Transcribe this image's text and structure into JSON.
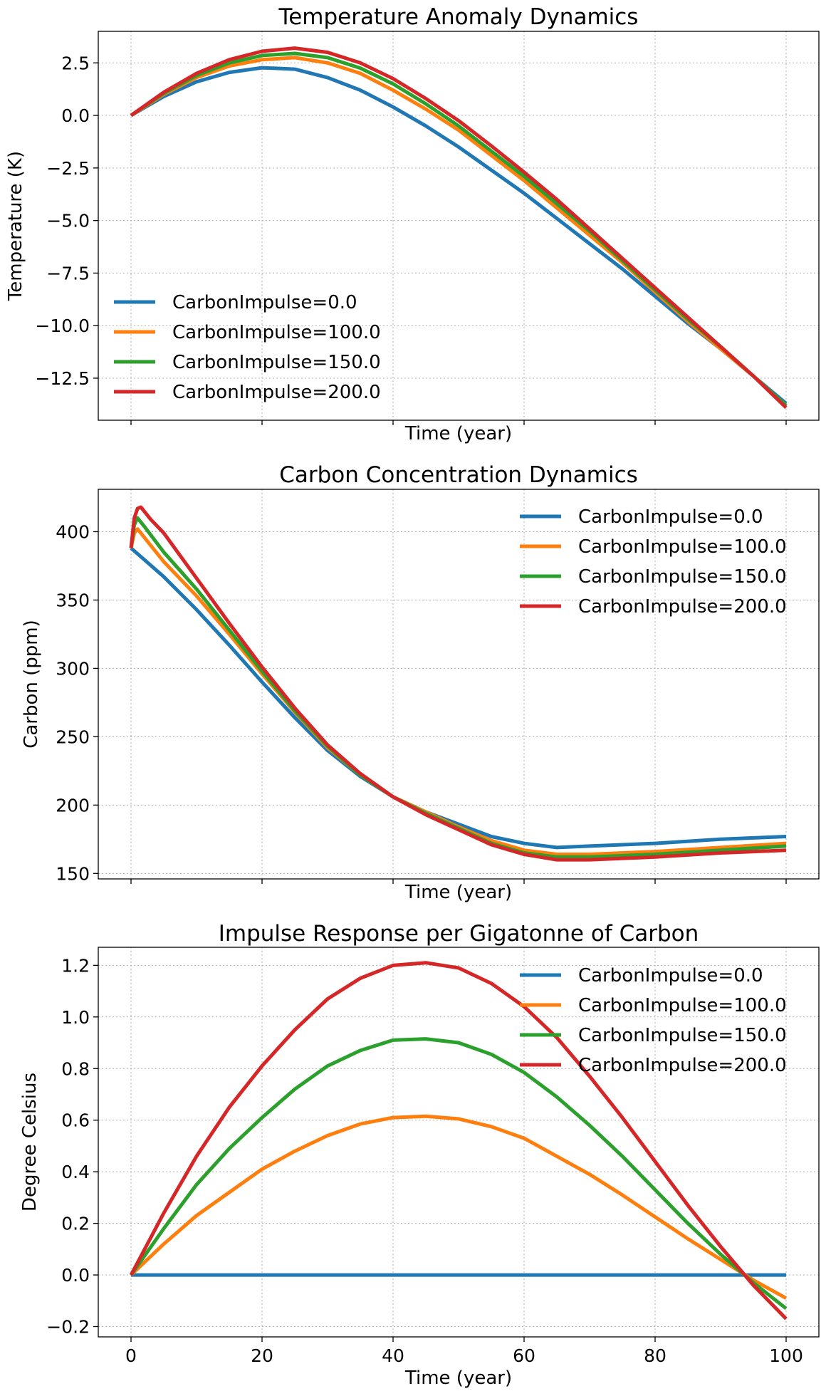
{
  "colors": {
    "CarbonImpulse=0.0": "#1f77b4",
    "CarbonImpulse=100.0": "#ff7f0e",
    "CarbonImpulse=150.0": "#2ca02c",
    "CarbonImpulse=200.0": "#d62728"
  },
  "chart_data": [
    {
      "type": "line",
      "title": "Temperature Anomaly Dynamics",
      "xlabel": "Time (year)",
      "ylabel": "Temperature  (K)",
      "xlim": [
        -5,
        105
      ],
      "ylim": [
        -14.5,
        4.0
      ],
      "xticks": [
        0,
        20,
        40,
        60,
        80,
        100
      ],
      "show_xtick_labels": false,
      "yticks": [
        2.5,
        0.0,
        -2.5,
        -5.0,
        -7.5,
        -10.0,
        -12.5
      ],
      "ytick_labels": [
        "2.5",
        "0.0",
        "−2.5",
        "−5.0",
        "−7.5",
        "−10.0",
        "−12.5"
      ],
      "grid": true,
      "legend_location": "lower-left",
      "x": [
        0,
        5,
        10,
        15,
        20,
        25,
        30,
        35,
        40,
        45,
        50,
        55,
        60,
        65,
        70,
        75,
        80,
        85,
        90,
        95,
        100
      ],
      "series": [
        {
          "name": "CarbonImpulse=0.0",
          "values": [
            0.0,
            0.9,
            1.6,
            2.05,
            2.27,
            2.2,
            1.8,
            1.2,
            0.4,
            -0.5,
            -1.5,
            -2.6,
            -3.7,
            -4.9,
            -6.1,
            -7.3,
            -8.6,
            -9.9,
            -11.1,
            -12.4,
            -13.7
          ]
        },
        {
          "name": "CarbonImpulse=100.0",
          "values": [
            0.0,
            1.0,
            1.8,
            2.35,
            2.65,
            2.75,
            2.5,
            2.0,
            1.2,
            0.3,
            -0.7,
            -1.9,
            -3.1,
            -4.4,
            -5.7,
            -7.0,
            -8.4,
            -9.8,
            -11.1,
            -12.4,
            -13.8
          ]
        },
        {
          "name": "CarbonImpulse=150.0",
          "values": [
            0.0,
            1.05,
            1.9,
            2.5,
            2.85,
            2.95,
            2.75,
            2.25,
            1.5,
            0.55,
            -0.5,
            -1.7,
            -2.9,
            -4.2,
            -5.5,
            -6.9,
            -8.3,
            -9.7,
            -11.0,
            -12.4,
            -13.8
          ]
        },
        {
          "name": "CarbonImpulse=200.0",
          "values": [
            0.0,
            1.1,
            2.0,
            2.65,
            3.05,
            3.2,
            3.0,
            2.5,
            1.75,
            0.8,
            -0.25,
            -1.45,
            -2.7,
            -4.0,
            -5.4,
            -6.8,
            -8.2,
            -9.6,
            -11.0,
            -12.4,
            -13.9
          ]
        }
      ]
    },
    {
      "type": "line",
      "title": "Carbon Concentration Dynamics",
      "xlabel": "Time (year)",
      "ylabel": "Carbon (ppm)",
      "xlim": [
        -5,
        105
      ],
      "ylim": [
        146,
        431
      ],
      "xticks": [
        0,
        20,
        40,
        60,
        80,
        100
      ],
      "show_xtick_labels": false,
      "yticks": [
        400,
        350,
        300,
        250,
        200,
        150
      ],
      "ytick_labels": [
        "400",
        "350",
        "300",
        "250",
        "200",
        "150"
      ],
      "grid": true,
      "legend_location": "upper-right",
      "series": [
        {
          "name": "CarbonImpulse=0.0",
          "x": [
            0,
            5,
            10,
            15,
            20,
            25,
            30,
            35,
            40,
            45,
            50,
            55,
            60,
            65,
            70,
            80,
            90,
            100
          ],
          "values": [
            388,
            367,
            343,
            317,
            290,
            264,
            240,
            221,
            206,
            195,
            186,
            177,
            172,
            169,
            170,
            172,
            175,
            177
          ]
        },
        {
          "name": "CarbonImpulse=100.0",
          "x": [
            0,
            0.5,
            1,
            2,
            5,
            10,
            15,
            20,
            25,
            30,
            35,
            40,
            45,
            50,
            55,
            60,
            65,
            70,
            80,
            90,
            100
          ],
          "values": [
            388,
            399,
            402,
            396,
            378,
            353,
            325,
            296,
            268,
            242,
            222,
            206,
            195,
            184,
            174,
            167,
            164,
            164,
            166,
            169,
            172
          ]
        },
        {
          "name": "CarbonImpulse=150.0",
          "x": [
            0,
            0.5,
            1,
            2,
            5,
            10,
            15,
            20,
            25,
            30,
            35,
            40,
            45,
            50,
            55,
            60,
            65,
            70,
            80,
            90,
            100
          ],
          "values": [
            388,
            405,
            410,
            404,
            385,
            358,
            328,
            298,
            269,
            243,
            222,
            206,
            194,
            183,
            172,
            165,
            162,
            162,
            164,
            167,
            170
          ]
        },
        {
          "name": "CarbonImpulse=200.0",
          "x": [
            0,
            0.5,
            1,
            1.5,
            2,
            3,
            5,
            10,
            15,
            20,
            25,
            30,
            35,
            40,
            45,
            50,
            55,
            60,
            65,
            70,
            80,
            90,
            100
          ],
          "values": [
            388,
            410,
            417,
            418,
            415,
            409,
            399,
            366,
            333,
            301,
            271,
            244,
            223,
            206,
            193,
            182,
            171,
            164,
            160,
            160,
            162,
            165,
            167
          ]
        }
      ]
    },
    {
      "type": "line",
      "title": "Impulse Response per Gigatonne of Carbon",
      "xlabel": "Time (year)",
      "ylabel": "Degree Celsius",
      "xlim": [
        -5,
        105
      ],
      "ylim": [
        -0.24,
        1.27
      ],
      "xticks": [
        0,
        20,
        40,
        60,
        80,
        100
      ],
      "xtick_labels": [
        "0",
        "20",
        "40",
        "60",
        "80",
        "100"
      ],
      "show_xtick_labels": true,
      "yticks": [
        1.2,
        1.0,
        0.8,
        0.6,
        0.4,
        0.2,
        0.0,
        -0.2
      ],
      "ytick_labels": [
        "1.2",
        "1.0",
        "0.8",
        "0.6",
        "0.4",
        "0.2",
        "0.0",
        "−0.2"
      ],
      "grid": true,
      "legend_location": "upper-right",
      "x": [
        0,
        5,
        10,
        15,
        20,
        25,
        30,
        35,
        40,
        45,
        50,
        55,
        60,
        65,
        70,
        75,
        80,
        85,
        90,
        95,
        100
      ],
      "series": [
        {
          "name": "CarbonImpulse=0.0",
          "values": [
            0,
            0,
            0,
            0,
            0,
            0,
            0,
            0,
            0,
            0,
            0,
            0,
            0,
            0,
            0,
            0,
            0,
            0,
            0,
            0,
            0
          ]
        },
        {
          "name": "CarbonImpulse=100.0",
          "values": [
            0.0,
            0.12,
            0.23,
            0.32,
            0.41,
            0.48,
            0.54,
            0.585,
            0.61,
            0.615,
            0.605,
            0.575,
            0.53,
            0.46,
            0.39,
            0.31,
            0.225,
            0.14,
            0.06,
            -0.02,
            -0.09
          ]
        },
        {
          "name": "CarbonImpulse=150.0",
          "values": [
            0.0,
            0.18,
            0.35,
            0.49,
            0.61,
            0.72,
            0.81,
            0.87,
            0.91,
            0.915,
            0.9,
            0.855,
            0.785,
            0.69,
            0.58,
            0.46,
            0.33,
            0.2,
            0.08,
            -0.03,
            -0.13
          ]
        },
        {
          "name": "CarbonImpulse=200.0",
          "values": [
            0.0,
            0.24,
            0.46,
            0.65,
            0.81,
            0.95,
            1.07,
            1.15,
            1.2,
            1.21,
            1.19,
            1.13,
            1.04,
            0.92,
            0.77,
            0.61,
            0.44,
            0.27,
            0.11,
            -0.04,
            -0.17
          ]
        }
      ]
    }
  ]
}
